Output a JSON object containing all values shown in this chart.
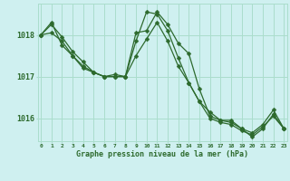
{
  "background_color": "#cff0f0",
  "grid_color": "#aaddcc",
  "line_color": "#2d6a2d",
  "x_hours": [
    0,
    1,
    2,
    3,
    4,
    5,
    6,
    7,
    8,
    9,
    10,
    11,
    12,
    13,
    14,
    15,
    16,
    17,
    18,
    19,
    20,
    21,
    22,
    23
  ],
  "series1": [
    1018.0,
    1018.25,
    1017.95,
    1017.6,
    1017.35,
    1017.1,
    1017.0,
    1017.05,
    1017.0,
    1018.05,
    1018.1,
    1018.55,
    1018.25,
    1017.8,
    1017.55,
    1016.7,
    1016.05,
    1015.95,
    1015.95,
    1015.75,
    1015.65,
    1015.85,
    1016.2,
    1015.75
  ],
  "series2": [
    1018.0,
    1018.3,
    1017.75,
    1017.5,
    1017.2,
    1017.1,
    1017.0,
    1017.0,
    1017.0,
    1017.85,
    1018.55,
    1018.5,
    1018.1,
    1017.45,
    1016.85,
    1016.4,
    1016.15,
    1015.95,
    1015.9,
    1015.75,
    1015.55,
    1015.75,
    1016.1,
    1015.75
  ],
  "series3": [
    1018.0,
    1018.05,
    1017.85,
    1017.5,
    1017.25,
    1017.1,
    1017.0,
    1017.0,
    1017.0,
    1017.5,
    1017.9,
    1018.3,
    1017.85,
    1017.25,
    1016.85,
    1016.4,
    1016.0,
    1015.9,
    1015.85,
    1015.7,
    1015.6,
    1015.8,
    1016.05,
    1015.75
  ],
  "ylim": [
    1015.45,
    1018.75
  ],
  "yticks": [
    1016,
    1017,
    1018
  ],
  "xlim": [
    -0.3,
    23.3
  ],
  "xticks": [
    0,
    1,
    2,
    3,
    4,
    5,
    6,
    7,
    8,
    9,
    10,
    11,
    12,
    13,
    14,
    15,
    16,
    17,
    18,
    19,
    20,
    21,
    22,
    23
  ],
  "xlabel": "Graphe pression niveau de la mer (hPa)",
  "markersize": 2.5
}
